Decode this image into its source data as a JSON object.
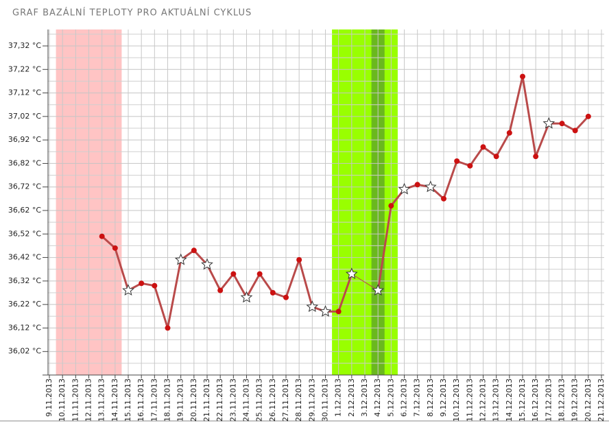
{
  "chart_data": {
    "type": "line",
    "title": "GRAF BAZÁLNÍ TEPLOTY PRO AKTUÁLNÍ CYKLUS",
    "categories": [
      "9.11.2013",
      "10.11.2013",
      "11.11.2013",
      "12.11.2013",
      "13.11.2013",
      "14.11.2013",
      "15.11.2013",
      "16.11.2013",
      "17.11.2013",
      "18.11.2013",
      "19.11.2013",
      "20.11.2013",
      "21.11.2013",
      "22.11.2013",
      "23.11.2013",
      "24.11.2013",
      "25.11.2013",
      "26.11.2013",
      "27.11.2013",
      "28.11.2013",
      "29.11.2013",
      "30.11.2013",
      "1.12.2013",
      "2.12.2013",
      "3.12.2013",
      "4.12.2013",
      "5.12.2013",
      "6.12.2013",
      "7.12.2013",
      "8.12.2013",
      "9.12.2013",
      "10.12.2013",
      "11.12.2013",
      "12.12.2013",
      "13.12.2013",
      "14.12.2013",
      "15.12.2013",
      "16.12.2013",
      "17.12.2013",
      "18.12.2013",
      "19.12.2013",
      "20.12.2013",
      "21.12.2013"
    ],
    "series": [
      {
        "color": "#b94a4a",
        "point_color": "#cc1111",
        "values": [
          null,
          null,
          null,
          null,
          36.51,
          36.46,
          36.28,
          36.31,
          36.3,
          36.12,
          36.41,
          36.45,
          36.39,
          36.28,
          36.35,
          36.25,
          36.35,
          36.27,
          36.25,
          36.41,
          36.21,
          36.19,
          36.19,
          36.35,
          null,
          36.28,
          36.64,
          36.71,
          36.73,
          36.72,
          36.67,
          36.83,
          36.81,
          36.89,
          36.85,
          36.95,
          37.19,
          36.85,
          36.99,
          36.99,
          36.96,
          37.02,
          null
        ],
        "markers": [
          null,
          null,
          null,
          null,
          "circle",
          "circle",
          "star",
          "circle",
          "circle",
          "circle",
          "star",
          "circle",
          "star",
          "circle",
          "circle",
          "star",
          "circle",
          "circle",
          "circle",
          "circle",
          "star",
          "star",
          "circle",
          "star",
          null,
          "star",
          "circle",
          "star",
          "circle",
          "star",
          "circle",
          "circle",
          "circle",
          "circle",
          "circle",
          "circle",
          "circle",
          "circle",
          "star",
          "circle",
          "circle",
          "circle",
          null
        ]
      }
    ],
    "bands": [
      {
        "from": "10.11.2013",
        "to": "14.11.2013",
        "color": "#ffc4c4"
      },
      {
        "from": "1.12.2013",
        "to": "5.12.2013",
        "color": "#99ff00"
      },
      {
        "from": "4.12.2013",
        "to": "4.12.2013",
        "color": "#6ab81e"
      }
    ],
    "ylim": [
      35.92,
      37.39
    ],
    "yticks": [
      {
        "value": 36.02,
        "label": "36,02 °C"
      },
      {
        "value": 36.12,
        "label": "36,12 °C"
      },
      {
        "value": 36.22,
        "label": "36,22 °C"
      },
      {
        "value": 36.32,
        "label": "36,32 °C"
      },
      {
        "value": 36.42,
        "label": "36,42 °C"
      },
      {
        "value": 36.52,
        "label": "36,52 °C"
      },
      {
        "value": 36.62,
        "label": "36,62 °C"
      },
      {
        "value": 36.72,
        "label": "36,72 °C"
      },
      {
        "value": 36.82,
        "label": "36,82 °C"
      },
      {
        "value": 36.92,
        "label": "36,92 °C"
      },
      {
        "value": 37.02,
        "label": "37,02 °C"
      },
      {
        "value": 37.12,
        "label": "37,12 °C"
      },
      {
        "value": 37.22,
        "label": "37,22 °C"
      },
      {
        "value": 37.32,
        "label": "37,32 °C"
      }
    ],
    "y_minor_ticks": [
      35.97,
      36.07,
      36.17,
      36.27,
      36.37,
      36.47,
      36.57,
      36.67,
      36.77,
      36.87,
      36.97,
      37.07,
      37.17,
      37.27,
      37.37
    ],
    "grid": true
  }
}
